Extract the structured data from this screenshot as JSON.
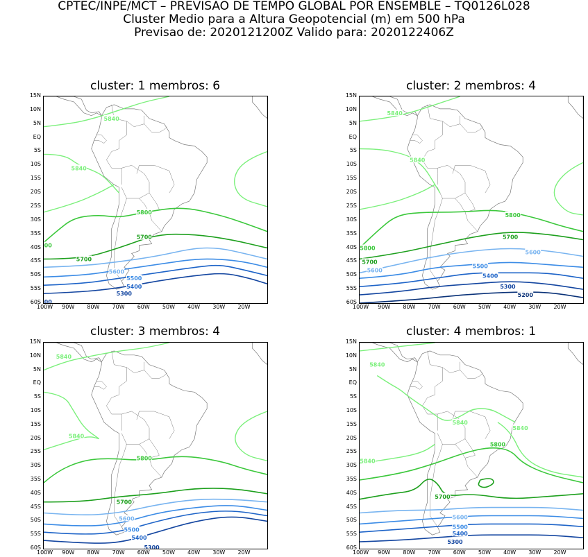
{
  "header": {
    "line1": "CPTEC/INPE/MCT – PREVISAO DE TEMPO GLOBAL POR ENSEMBLE – TQ0126L028",
    "line2": "Cluster Medio para a Altura Geopotencial (m) em 500 hPa",
    "line3": "Previsao de: 2020121200Z    Valido para: 2020122406Z"
  },
  "axes": {
    "y_ticks": [
      "15N",
      "10N",
      "5N",
      "EQ",
      "5S",
      "10S",
      "15S",
      "20S",
      "25S",
      "30S",
      "35S",
      "40S",
      "45S",
      "50S",
      "55S",
      "60S"
    ],
    "x_ticks": [
      "100W",
      "90W",
      "80W",
      "70W",
      "60W",
      "50W",
      "40W",
      "30W",
      "20W"
    ]
  },
  "colors": {
    "c5840": "#7cf07c",
    "c5800": "#3cc83c",
    "c5700": "#1ea01e",
    "c5600": "#78b4f0",
    "c5500": "#3c8ce6",
    "c5400": "#1e64c8",
    "c5300": "#1446a0",
    "c5200": "#0a3278",
    "land": "#7a7a7a"
  },
  "panels": [
    {
      "title": "cluster: 1   membros: 6",
      "labels": [
        {
          "text": "5840",
          "lon": -73,
          "lat": 7,
          "level": "c5840"
        },
        {
          "text": "5840",
          "lon": -86,
          "lat": -11,
          "level": "c5840"
        },
        {
          "text": "5800",
          "lon": -60,
          "lat": -27,
          "level": "c5800"
        },
        {
          "text": "5700",
          "lon": -60,
          "lat": -36,
          "level": "c5700"
        },
        {
          "text": "5700",
          "lon": -84,
          "lat": -44,
          "level": "c5700"
        },
        {
          "text": "5600",
          "lon": -71,
          "lat": -48.5,
          "level": "c5600"
        },
        {
          "text": "5500",
          "lon": -64,
          "lat": -51,
          "level": "c5500"
        },
        {
          "text": "5400",
          "lon": -64,
          "lat": -54,
          "level": "c5400"
        },
        {
          "text": "5300",
          "lon": -68,
          "lat": -56.5,
          "level": "c5300"
        },
        {
          "text": "00",
          "lon": -100,
          "lat": -59.5,
          "level": "c5300"
        },
        {
          "text": "00",
          "lon": -100,
          "lat": -39,
          "level": "c5800"
        }
      ]
    },
    {
      "title": "cluster: 2   membros: 4",
      "labels": [
        {
          "text": "5840",
          "lon": -86,
          "lat": 9,
          "level": "c5840"
        },
        {
          "text": "5840",
          "lon": -77,
          "lat": -8,
          "level": "c5840"
        },
        {
          "text": "5800",
          "lon": -39,
          "lat": -28,
          "level": "c5800"
        },
        {
          "text": "5800",
          "lon": -98,
          "lat": -40,
          "level": "c5800"
        },
        {
          "text": "5700",
          "lon": -40,
          "lat": -36,
          "level": "c5700"
        },
        {
          "text": "5700",
          "lon": -96,
          "lat": -45,
          "level": "c5700"
        },
        {
          "text": "5600",
          "lon": -31,
          "lat": -41.5,
          "level": "c5600"
        },
        {
          "text": "5600",
          "lon": -94,
          "lat": -48,
          "level": "c5600"
        },
        {
          "text": "5500",
          "lon": -52,
          "lat": -46.5,
          "level": "c5500"
        },
        {
          "text": "5400",
          "lon": -48,
          "lat": -50,
          "level": "c5400"
        },
        {
          "text": "5300",
          "lon": -41,
          "lat": -54,
          "level": "c5300"
        },
        {
          "text": "5200",
          "lon": -34,
          "lat": -57,
          "level": "c5200"
        }
      ]
    },
    {
      "title": "cluster: 3   membros: 4",
      "labels": [
        {
          "text": "5840",
          "lon": -92,
          "lat": 10,
          "level": "c5840"
        },
        {
          "text": "5840",
          "lon": -87,
          "lat": -19,
          "level": "c5840"
        },
        {
          "text": "5800",
          "lon": -60,
          "lat": -27,
          "level": "c5800"
        },
        {
          "text": "5700",
          "lon": -68,
          "lat": -43,
          "level": "c5700"
        },
        {
          "text": "5600",
          "lon": -67,
          "lat": -49,
          "level": "c5600"
        },
        {
          "text": "5500",
          "lon": -65,
          "lat": -53,
          "level": "c5500"
        },
        {
          "text": "5400",
          "lon": -62,
          "lat": -56,
          "level": "c5400"
        },
        {
          "text": "5300",
          "lon": -57,
          "lat": -59.5,
          "level": "c5300"
        }
      ]
    },
    {
      "title": "cluster: 4   membros: 1",
      "labels": [
        {
          "text": "5840",
          "lon": -93,
          "lat": 7,
          "level": "c5840"
        },
        {
          "text": "5840",
          "lon": -60,
          "lat": -14,
          "level": "c5840"
        },
        {
          "text": "5840",
          "lon": -36,
          "lat": -16,
          "level": "c5840"
        },
        {
          "text": "5840",
          "lon": -98,
          "lat": -28,
          "level": "c5840"
        },
        {
          "text": "5800",
          "lon": -45,
          "lat": -22,
          "level": "c5800"
        },
        {
          "text": "5700",
          "lon": -67,
          "lat": -41,
          "level": "c5700"
        },
        {
          "text": "5600",
          "lon": -60,
          "lat": -48.5,
          "level": "c5600"
        },
        {
          "text": "5500",
          "lon": -60,
          "lat": -52,
          "level": "c5500"
        },
        {
          "text": "5400",
          "lon": -60,
          "lat": -54.5,
          "level": "c5400"
        },
        {
          "text": "5300",
          "lon": -62,
          "lat": -57.5,
          "level": "c5300"
        }
      ]
    }
  ]
}
